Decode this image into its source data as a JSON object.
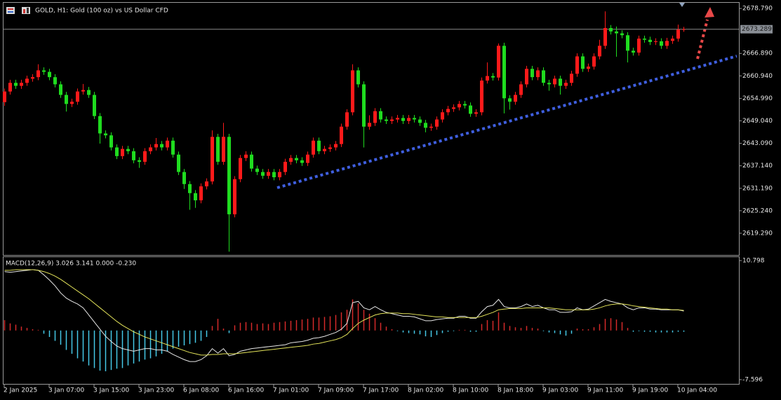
{
  "chart_data": {
    "type": "candlestick",
    "title": "GOLD, H1:  Gold (100 oz) vs US Dollar CFD",
    "up_color": "#ff1a1a",
    "down_color": "#1fdc1f",
    "ylim": [
      2613.53,
      2680.28
    ],
    "yticks": [
      {
        "value": 2678.79,
        "label": "2678.790"
      },
      {
        "value": 2666.89,
        "label": "2666.890"
      },
      {
        "value": 2660.94,
        "label": "2660.940"
      },
      {
        "value": 2654.99,
        "label": "2654.990"
      },
      {
        "value": 2649.04,
        "label": "2649.040"
      },
      {
        "value": 2643.09,
        "label": "2643.090"
      },
      {
        "value": 2637.14,
        "label": "2637.140"
      },
      {
        "value": 2631.19,
        "label": "2631.190"
      },
      {
        "value": 2625.24,
        "label": "2625.240"
      },
      {
        "value": 2619.29,
        "label": "2619.290"
      }
    ],
    "current_price": 2673.289,
    "categories": [
      "2 Jan 2025",
      null,
      null,
      null,
      null,
      null,
      null,
      null,
      "3 Jan 07:00",
      null,
      null,
      null,
      null,
      null,
      null,
      null,
      "3 Jan 15:00",
      null,
      null,
      null,
      null,
      null,
      null,
      null,
      "3 Jan 23:00",
      null,
      null,
      null,
      null,
      null,
      null,
      null,
      "6 Jan 08:00",
      null,
      null,
      null,
      null,
      null,
      null,
      null,
      "6 Jan 16:00",
      null,
      null,
      null,
      null,
      null,
      null,
      null,
      "7 Jan 01:00",
      null,
      null,
      null,
      null,
      null,
      null,
      null,
      "7 Jan 09:00",
      null,
      null,
      null,
      null,
      null,
      null,
      null,
      "7 Jan 17:00",
      null,
      null,
      null,
      null,
      null,
      null,
      null,
      "8 Jan 02:00",
      null,
      null,
      null,
      null,
      null,
      null,
      null,
      "8 Jan 10:00",
      null,
      null,
      null,
      null,
      null,
      null,
      null,
      "8 Jan 18:00",
      null,
      null,
      null,
      null,
      null,
      null,
      null,
      "9 Jan 03:00",
      null,
      null,
      null,
      null,
      null,
      null,
      null,
      "9 Jan 11:00",
      null,
      null,
      null,
      null,
      null,
      null,
      null,
      "9 Jan 19:00",
      null,
      null,
      null,
      null,
      null,
      null,
      null,
      "10 Jan 04:00",
      null
    ],
    "open": [
      2654.0,
      2656.8,
      2659.1,
      2658.3,
      2659.1,
      2660.2,
      2660.6,
      2662.4,
      2662.0,
      2660.6,
      2658.7,
      2655.9,
      2653.5,
      2654.1,
      2656.8,
      2657.2,
      2655.9,
      2650.3,
      2645.7,
      2645.2,
      2642.0,
      2639.7,
      2641.6,
      2641.0,
      2638.6,
      2638.2,
      2641.0,
      2642.0,
      2642.9,
      2642.0,
      2643.8,
      2640.1,
      2635.5,
      2632.3,
      2629.9,
      2628.0,
      2631.7,
      2633.0,
      2644.8,
      2638.2,
      2644.8,
      2624.3,
      2633.6,
      2639.2,
      2640.1,
      2636.4,
      2635.5,
      2634.5,
      2635.5,
      2634.1,
      2635.5,
      2638.2,
      2639.2,
      2638.6,
      2637.9,
      2640.1,
      2643.8,
      2641.0,
      2641.6,
      2642.0,
      2642.9,
      2647.5,
      2651.3,
      2662.4,
      2658.7,
      2647.5,
      2648.5,
      2651.6,
      2649.4,
      2649.0,
      2649.4,
      2649.8,
      2649.0,
      2649.8,
      2649.4,
      2648.5,
      2647.2,
      2647.5,
      2649.4,
      2651.3,
      2652.2,
      2652.6,
      2653.5,
      2653.1,
      2650.9,
      2651.3,
      2659.7,
      2660.9,
      2660.5,
      2668.9,
      2655.0,
      2654.1,
      2655.9,
      2658.7,
      2662.8,
      2660.6,
      2662.4,
      2659.1,
      2658.7,
      2660.2,
      2658.3,
      2659.1,
      2661.5,
      2666.1,
      2662.8,
      2663.4,
      2666.1,
      2668.9,
      2673.6,
      2672.7,
      2672.2,
      2671.7,
      2667.6,
      2667.1,
      2670.8,
      2670.5,
      2669.9,
      2670.1,
      2668.9,
      2670.2,
      2670.8,
      2673.2
    ],
    "high": [
      2657.6,
      2659.9,
      2659.9,
      2659.9,
      2661.0,
      2661.4,
      2664.0,
      2663.2,
      2662.8,
      2661.4,
      2659.5,
      2656.7,
      2654.9,
      2657.6,
      2658.8,
      2658.0,
      2656.7,
      2651.1,
      2646.5,
      2646.0,
      2642.8,
      2642.4,
      2642.4,
      2641.8,
      2639.4,
      2641.8,
      2642.8,
      2644.5,
      2643.7,
      2644.6,
      2644.6,
      2640.9,
      2636.3,
      2633.1,
      2630.7,
      2632.5,
      2633.8,
      2646.5,
      2645.6,
      2648.5,
      2645.6,
      2634.4,
      2640.0,
      2641.0,
      2640.9,
      2637.2,
      2636.3,
      2636.3,
      2636.3,
      2636.3,
      2639.0,
      2640.0,
      2640.0,
      2639.4,
      2640.9,
      2644.6,
      2644.6,
      2642.4,
      2642.8,
      2643.7,
      2648.3,
      2652.1,
      2664.0,
      2663.2,
      2659.5,
      2650.5,
      2652.4,
      2652.4,
      2650.2,
      2650.2,
      2650.6,
      2650.6,
      2650.6,
      2650.6,
      2650.2,
      2649.3,
      2648.3,
      2650.2,
      2652.1,
      2653.0,
      2653.4,
      2654.3,
      2654.3,
      2653.9,
      2652.1,
      2660.5,
      2664.5,
      2661.7,
      2669.5,
      2669.7,
      2655.8,
      2656.7,
      2659.5,
      2663.6,
      2663.6,
      2663.2,
      2663.2,
      2659.9,
      2661.0,
      2661.0,
      2659.9,
      2662.3,
      2666.9,
      2666.9,
      2664.2,
      2666.9,
      2670.5,
      2678.0,
      2674.4,
      2674.0,
      2673.0,
      2672.5,
      2668.4,
      2671.6,
      2671.6,
      2671.3,
      2670.9,
      2670.9,
      2671.0,
      2671.6,
      2674.5,
      2673.9
    ],
    "low": [
      2653.0,
      2656.0,
      2657.5,
      2657.5,
      2658.3,
      2659.4,
      2659.8,
      2661.2,
      2659.8,
      2657.9,
      2655.1,
      2651.5,
      2652.7,
      2653.3,
      2656.0,
      2655.1,
      2649.5,
      2643.0,
      2644.4,
      2641.2,
      2638.9,
      2638.9,
      2640.2,
      2637.8,
      2636.6,
      2637.4,
      2640.2,
      2641.2,
      2641.2,
      2641.2,
      2639.3,
      2634.7,
      2631.0,
      2625.5,
      2626.0,
      2627.2,
      2630.9,
      2632.2,
      2637.4,
      2637.4,
      2614.4,
      2623.5,
      2632.8,
      2638.4,
      2635.6,
      2634.7,
      2633.7,
      2633.7,
      2633.3,
      2633.3,
      2634.7,
      2637.4,
      2637.8,
      2637.1,
      2637.1,
      2639.3,
      2640.2,
      2640.2,
      2640.8,
      2641.2,
      2642.1,
      2646.7,
      2650.5,
      2657.9,
      2642.0,
      2646.7,
      2647.7,
      2648.6,
      2648.2,
      2648.2,
      2648.6,
      2648.2,
      2648.2,
      2648.6,
      2647.7,
      2646.0,
      2646.4,
      2646.7,
      2648.6,
      2650.5,
      2651.4,
      2651.8,
      2652.3,
      2650.1,
      2650.1,
      2650.5,
      2658.9,
      2659.7,
      2659.7,
      2651.0,
      2652.0,
      2653.3,
      2655.1,
      2657.9,
      2659.8,
      2659.8,
      2658.3,
      2657.0,
      2657.9,
      2656.0,
      2657.5,
      2658.3,
      2660.7,
      2662.0,
      2662.0,
      2662.6,
      2665.3,
      2668.1,
      2671.9,
      2666.0,
      2670.9,
      2664.5,
      2666.3,
      2666.3,
      2669.7,
      2669.1,
      2669.1,
      2668.1,
      2668.1,
      2669.4,
      2670.0,
      2672.6
    ],
    "close": [
      2656.8,
      2659.1,
      2658.3,
      2659.1,
      2660.2,
      2660.6,
      2662.4,
      2662.0,
      2660.6,
      2658.7,
      2655.9,
      2653.5,
      2654.1,
      2656.8,
      2657.2,
      2655.9,
      2650.3,
      2645.7,
      2645.2,
      2642.0,
      2639.7,
      2641.6,
      2641.0,
      2638.6,
      2638.2,
      2641.0,
      2642.0,
      2642.9,
      2642.0,
      2643.8,
      2640.1,
      2635.5,
      2632.3,
      2629.9,
      2628.0,
      2631.7,
      2633.0,
      2644.8,
      2638.2,
      2644.8,
      2624.3,
      2633.6,
      2639.2,
      2640.1,
      2636.4,
      2635.5,
      2634.5,
      2635.5,
      2634.1,
      2635.5,
      2638.2,
      2639.2,
      2638.6,
      2637.9,
      2640.1,
      2643.8,
      2641.0,
      2641.6,
      2642.0,
      2642.9,
      2647.5,
      2651.3,
      2662.4,
      2658.7,
      2647.5,
      2648.5,
      2651.6,
      2649.4,
      2649.0,
      2649.4,
      2649.8,
      2649.0,
      2649.8,
      2649.4,
      2648.5,
      2647.2,
      2647.5,
      2649.4,
      2651.3,
      2652.2,
      2652.6,
      2653.5,
      2653.1,
      2650.9,
      2651.3,
      2659.7,
      2660.9,
      2660.5,
      2668.9,
      2655.0,
      2654.1,
      2655.9,
      2658.7,
      2662.8,
      2660.6,
      2662.4,
      2659.1,
      2658.7,
      2660.2,
      2658.3,
      2659.1,
      2661.5,
      2666.1,
      2662.8,
      2663.4,
      2666.1,
      2668.9,
      2673.6,
      2672.7,
      2672.2,
      2671.7,
      2667.6,
      2667.1,
      2670.8,
      2670.5,
      2669.9,
      2670.1,
      2668.9,
      2670.2,
      2670.8,
      2673.2,
      2673.3
    ],
    "indicator": {
      "type": "macd",
      "title": "MACD(12,26,9) 3.026 3.141 0.000 -0.230",
      "ylim": [
        -8.25,
        11.45
      ],
      "yticks": [
        10.798,
        -7.596
      ],
      "histogram": {
        "up_color": "#d42a2a",
        "down_color": "#45c8e6",
        "values": [
          1.6,
          1.1,
          0.9,
          0.6,
          0.4,
          0.2,
          0.1,
          -0.5,
          -1.0,
          -1.6,
          -2.2,
          -3.0,
          -3.6,
          -4.3,
          -4.8,
          -5.4,
          -5.8,
          -6.2,
          -6.3,
          -6.1,
          -5.9,
          -5.8,
          -5.4,
          -5.1,
          -4.8,
          -4.5,
          -4.3,
          -4.0,
          -3.6,
          -3.2,
          -2.8,
          -2.5,
          -2.3,
          -2.1,
          -1.9,
          -1.6,
          -1.0,
          0.7,
          1.8,
          0.3,
          -0.4,
          0.8,
          1.2,
          1.3,
          1.2,
          1.0,
          1.1,
          1.0,
          1.2,
          1.3,
          1.4,
          1.5,
          1.6,
          1.7,
          1.8,
          2.0,
          2.0,
          2.1,
          2.2,
          2.4,
          2.8,
          3.2,
          4.8,
          4.2,
          3.2,
          2.6,
          1.9,
          1.2,
          0.6,
          0.2,
          -0.1,
          -0.3,
          -0.4,
          -0.5,
          -0.6,
          -0.9,
          -1.0,
          -0.7,
          -0.4,
          -0.2,
          -0.1,
          0.1,
          0.1,
          -0.2,
          -0.2,
          1.0,
          1.6,
          1.5,
          2.8,
          1.2,
          0.7,
          0.5,
          0.4,
          0.7,
          0.4,
          0.3,
          -0.1,
          -0.3,
          -0.4,
          -0.6,
          -0.8,
          -0.5,
          0.3,
          0.2,
          0.2,
          0.5,
          1.0,
          1.8,
          1.9,
          1.7,
          1.3,
          0.4,
          -0.2,
          -0.1,
          -0.2,
          -0.2,
          -0.3,
          -0.3,
          -0.3,
          -0.3,
          -0.2,
          -0.2
        ]
      },
      "series": [
        {
          "color": "#e8e8e8",
          "values": [
            9.1,
            9.0,
            9.1,
            9.2,
            9.3,
            9.4,
            9.3,
            8.6,
            7.8,
            6.9,
            5.8,
            5.0,
            4.5,
            4.1,
            3.5,
            2.4,
            1.3,
            0.2,
            -0.9,
            -1.7,
            -2.4,
            -2.8,
            -3.0,
            -3.2,
            -3.0,
            -2.8,
            -2.8,
            -3.0,
            -3.0,
            -3.2,
            -3.7,
            -4.1,
            -4.5,
            -4.8,
            -4.8,
            -4.5,
            -3.9,
            -2.8,
            -3.5,
            -2.8,
            -3.9,
            -3.7,
            -3.2,
            -3.0,
            -2.8,
            -2.7,
            -2.6,
            -2.5,
            -2.4,
            -2.3,
            -2.2,
            -1.9,
            -1.8,
            -1.7,
            -1.5,
            -1.2,
            -1.1,
            -0.9,
            -0.6,
            -0.3,
            0.2,
            1.1,
            4.3,
            4.5,
            3.5,
            3.2,
            3.7,
            3.2,
            2.8,
            2.6,
            2.4,
            2.2,
            2.2,
            2.1,
            1.8,
            1.5,
            1.5,
            1.7,
            1.8,
            1.9,
            1.9,
            2.2,
            2.2,
            1.9,
            1.9,
            2.9,
            3.7,
            3.9,
            4.8,
            3.7,
            3.5,
            3.5,
            3.7,
            4.1,
            3.7,
            3.9,
            3.5,
            3.2,
            3.2,
            2.8,
            2.8,
            2.9,
            3.5,
            3.2,
            3.3,
            3.8,
            4.3,
            4.8,
            4.5,
            4.3,
            4.1,
            3.5,
            3.2,
            3.5,
            3.5,
            3.3,
            3.3,
            3.2,
            3.2,
            3.2,
            3.2,
            3.0
          ]
        },
        {
          "color": "#e4e45a",
          "values": [
            9.3,
            9.3,
            9.4,
            9.4,
            9.4,
            9.4,
            9.3,
            9.1,
            8.8,
            8.4,
            7.9,
            7.3,
            6.7,
            6.1,
            5.5,
            4.9,
            4.2,
            3.5,
            2.8,
            2.1,
            1.4,
            0.8,
            0.3,
            -0.2,
            -0.6,
            -1.0,
            -1.3,
            -1.6,
            -1.9,
            -2.2,
            -2.5,
            -2.8,
            -3.1,
            -3.4,
            -3.6,
            -3.8,
            -3.8,
            -3.7,
            -3.7,
            -3.6,
            -3.6,
            -3.6,
            -3.5,
            -3.4,
            -3.3,
            -3.2,
            -3.1,
            -3.0,
            -2.9,
            -2.8,
            -2.7,
            -2.6,
            -2.5,
            -2.4,
            -2.3,
            -2.1,
            -2.0,
            -1.8,
            -1.6,
            -1.4,
            -1.1,
            -0.6,
            0.3,
            1.1,
            1.6,
            2.0,
            2.4,
            2.6,
            2.7,
            2.7,
            2.7,
            2.6,
            2.6,
            2.5,
            2.4,
            2.3,
            2.2,
            2.1,
            2.1,
            2.0,
            2.0,
            2.0,
            2.0,
            2.0,
            2.0,
            2.2,
            2.5,
            2.8,
            3.2,
            3.3,
            3.4,
            3.4,
            3.4,
            3.5,
            3.5,
            3.5,
            3.5,
            3.5,
            3.4,
            3.3,
            3.2,
            3.2,
            3.2,
            3.2,
            3.2,
            3.3,
            3.5,
            3.8,
            4.0,
            4.1,
            4.1,
            4.0,
            3.8,
            3.7,
            3.6,
            3.5,
            3.4,
            3.3,
            3.3,
            3.2,
            3.2,
            3.1
          ]
        }
      ]
    }
  }
}
